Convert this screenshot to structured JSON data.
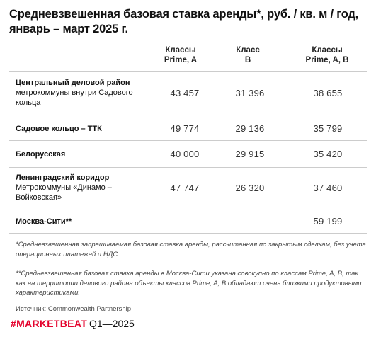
{
  "title": "Средневзвешенная базовая ставка аренды*, руб. / кв. м / год, январь – март 2025 г.",
  "columns": [
    {
      "line1": "Классы",
      "line2": "Prime, A"
    },
    {
      "line1": "Класс",
      "line2": "B"
    },
    {
      "line1": "Классы",
      "line2": "Prime, A, B"
    }
  ],
  "rows": [
    {
      "label": "Центральный деловой район",
      "sub": "метрокоммуны внутри Садового кольца",
      "values": [
        "43 457",
        "31 396",
        "38 655"
      ]
    },
    {
      "label": "Садовое кольцо – ТТК",
      "sub": "",
      "values": [
        "49 774",
        "29 136",
        "35 799"
      ]
    },
    {
      "label": "Белорусская",
      "sub": "",
      "values": [
        "40 000",
        "29 915",
        "35 420"
      ]
    },
    {
      "label": "Ленинградский коридор",
      "sub": "Метрокоммуны «Динамо – Войковская»",
      "values": [
        "47 747",
        "26 320",
        "37 460"
      ]
    },
    {
      "label": "Москва-Сити**",
      "sub": "",
      "values": [
        "",
        "",
        "59 199"
      ]
    }
  ],
  "notes": {
    "note1": "*Средневзвешенная запрашиваемая базовая ставка аренды, рассчитанная по закрытым сделкам, без учета операционных платежей и НДС.",
    "note2": "**Средневзвешенная базовая ставка аренды в Москва-Сити указана совокупно по классам Prime, A, B, так как на территории делового района объекты классов Prime, A, B обладают очень близкими продуктовыми характеристиками."
  },
  "source": "Источник: Commonwealth Partnership",
  "brand": "#MARKETBEAT",
  "period": "Q1—2025",
  "colors": {
    "brand": "#e4002b",
    "shade": "#f2f2f2",
    "divider": "#cccccc"
  }
}
